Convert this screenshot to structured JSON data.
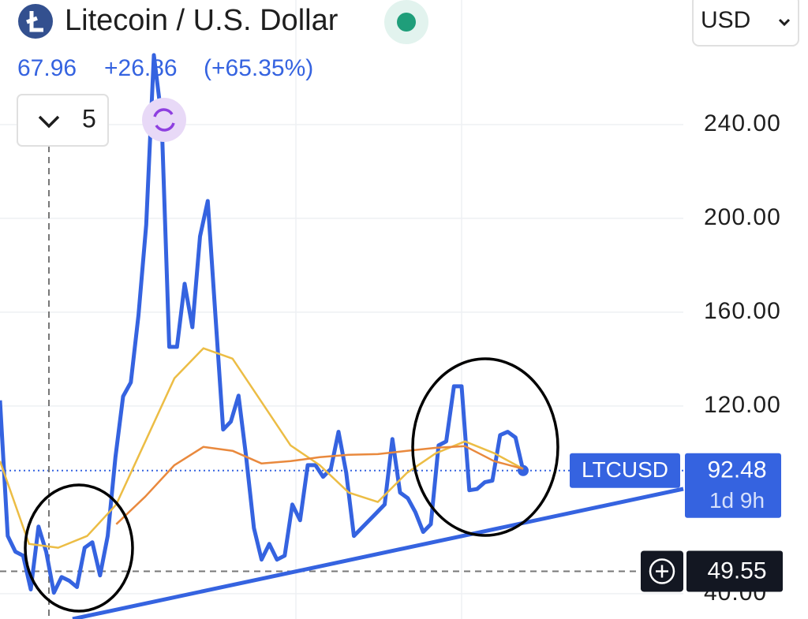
{
  "chart_data": {
    "type": "line",
    "title": "Litecoin / U.S. Dollar",
    "last_price": 67.96,
    "change": "+26.86",
    "change_percent": "(+65.35%)",
    "interval": "5",
    "currency": "USD",
    "symbol": "LTCUSD",
    "current_price": 92.48,
    "countdown": "1d 9h",
    "crosshair_price": 49.55,
    "ylim": [
      29.2,
      293.1
    ],
    "yticks": [
      {
        "value": 40,
        "label": "40.00"
      },
      {
        "value": 120,
        "label": "120.00"
      },
      {
        "value": 160,
        "label": "160.00"
      },
      {
        "value": 200,
        "label": "200.00"
      },
      {
        "value": 240,
        "label": "240.00"
      }
    ],
    "series": [
      {
        "color": "#3563e0",
        "values": [
          122.4,
          64.6,
          57.9,
          56.2,
          41.8,
          68.6,
          57.9,
          40.4,
          47.1,
          45.5,
          42.8,
          59.6,
          61.9,
          47.8,
          64.6,
          98.2,
          124.1,
          130.1,
          158.7,
          197.3,
          269.6,
          242.7,
          145.2,
          145.2,
          172.1,
          153.6,
          192.3,
          207.4,
          158.7,
          110,
          113.3,
          124.4,
          98.2,
          68,
          54.5,
          61.2,
          54.5,
          56.2,
          78,
          71.3,
          94.8,
          94.8,
          89.8,
          93.2,
          109,
          91.5,
          64.6,
          68,
          71.3,
          74.7,
          78,
          105.9,
          83.1,
          80.7,
          74.7,
          66.3,
          69.6,
          103.2,
          104.9,
          128.4,
          128.4,
          84.1,
          84.6,
          87.5,
          88.2,
          107.6,
          109,
          106.6,
          92.48
        ]
      },
      {
        "color": "#ecbd45",
        "values": [
          96.5,
          61.2,
          59.6,
          64.6,
          78,
          104.9,
          131.8,
          144.6,
          140.2,
          121.7,
          103.2,
          94.8,
          83.1,
          79.1,
          91.5,
          99.9,
          104.9,
          99.9,
          93.2
        ]
      },
      {
        "color": "#e9893d",
        "values": [
          null,
          null,
          null,
          null,
          69.6,
          81.4,
          94.8,
          102.6,
          100.9,
          95.5,
          96.5,
          98.2,
          99.2,
          99.5,
          100.9,
          102.2,
          102.9,
          96.5,
          93.2
        ]
      }
    ]
  }
}
